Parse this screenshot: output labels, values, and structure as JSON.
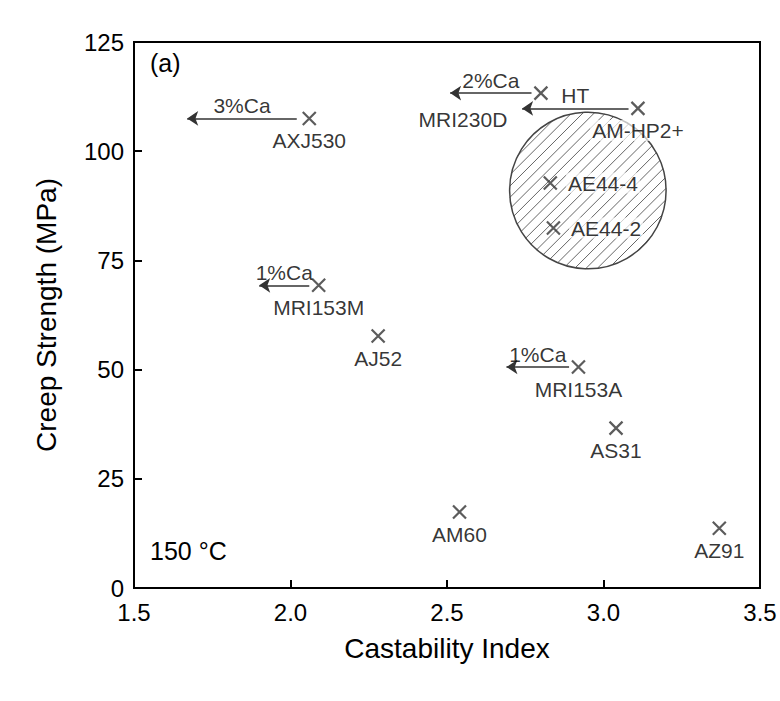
{
  "chart_data": {
    "type": "scatter",
    "x_label": "Castability Index",
    "y_label": "Creep Strength (MPa)",
    "xlim": [
      1.5,
      3.5
    ],
    "xticks": [
      1.5,
      {
        "value": 2,
        "label": "2.0"
      },
      2.5,
      {
        "value": 3,
        "label": "3.0"
      },
      3.5
    ],
    "ylim": [
      0,
      125
    ],
    "yticks": [
      0,
      25,
      50,
      75,
      100,
      125
    ],
    "grid": false,
    "marker": "x",
    "color": "#333333",
    "points": [
      {
        "label": "AXJ530",
        "x": 2.06,
        "y": 107.5
      },
      {
        "label": "MRI230D",
        "x": 2.8,
        "y": 113.3
      },
      {
        "label": "AM-HP2+",
        "x": 3.11,
        "y": 109.8
      },
      {
        "label": "AE44-4",
        "x": 2.83,
        "y": 92.7
      },
      {
        "label": "AE44-2",
        "x": 2.84,
        "y": 82.4
      },
      {
        "label": "MRI153M",
        "x": 2.09,
        "y": 69.3
      },
      {
        "label": "AJ52",
        "x": 2.28,
        "y": 57.7
      },
      {
        "label": "MRI153A",
        "x": 2.92,
        "y": 50.6
      },
      {
        "label": "AS31",
        "x": 3.04,
        "y": 36.6
      },
      {
        "label": "AM60",
        "x": 2.54,
        "y": 17.4
      },
      {
        "label": "AZ91",
        "x": 3.37,
        "y": 13.7
      }
    ],
    "arrows": [
      {
        "text": "3%Ca",
        "from": [
          2.02,
          107.5
        ],
        "to": [
          1.67,
          107.5
        ]
      },
      {
        "text": "2%Ca",
        "from": [
          2.77,
          113.3
        ],
        "to": [
          2.51,
          113.3
        ]
      },
      {
        "text": "HT",
        "from": [
          3.08,
          109.8
        ],
        "to": [
          2.74,
          109.8
        ]
      },
      {
        "text": "1%Ca",
        "from": [
          2.06,
          69.3
        ],
        "to": [
          1.9,
          69.3
        ]
      },
      {
        "text": "1%Ca",
        "from": [
          2.89,
          50.6
        ],
        "to": [
          2.69,
          50.6
        ]
      }
    ],
    "highlight": {
      "x": 2.95,
      "y": 91,
      "radius_x": 0.25
    },
    "annotations": [
      "(a)",
      "150 °C"
    ]
  }
}
